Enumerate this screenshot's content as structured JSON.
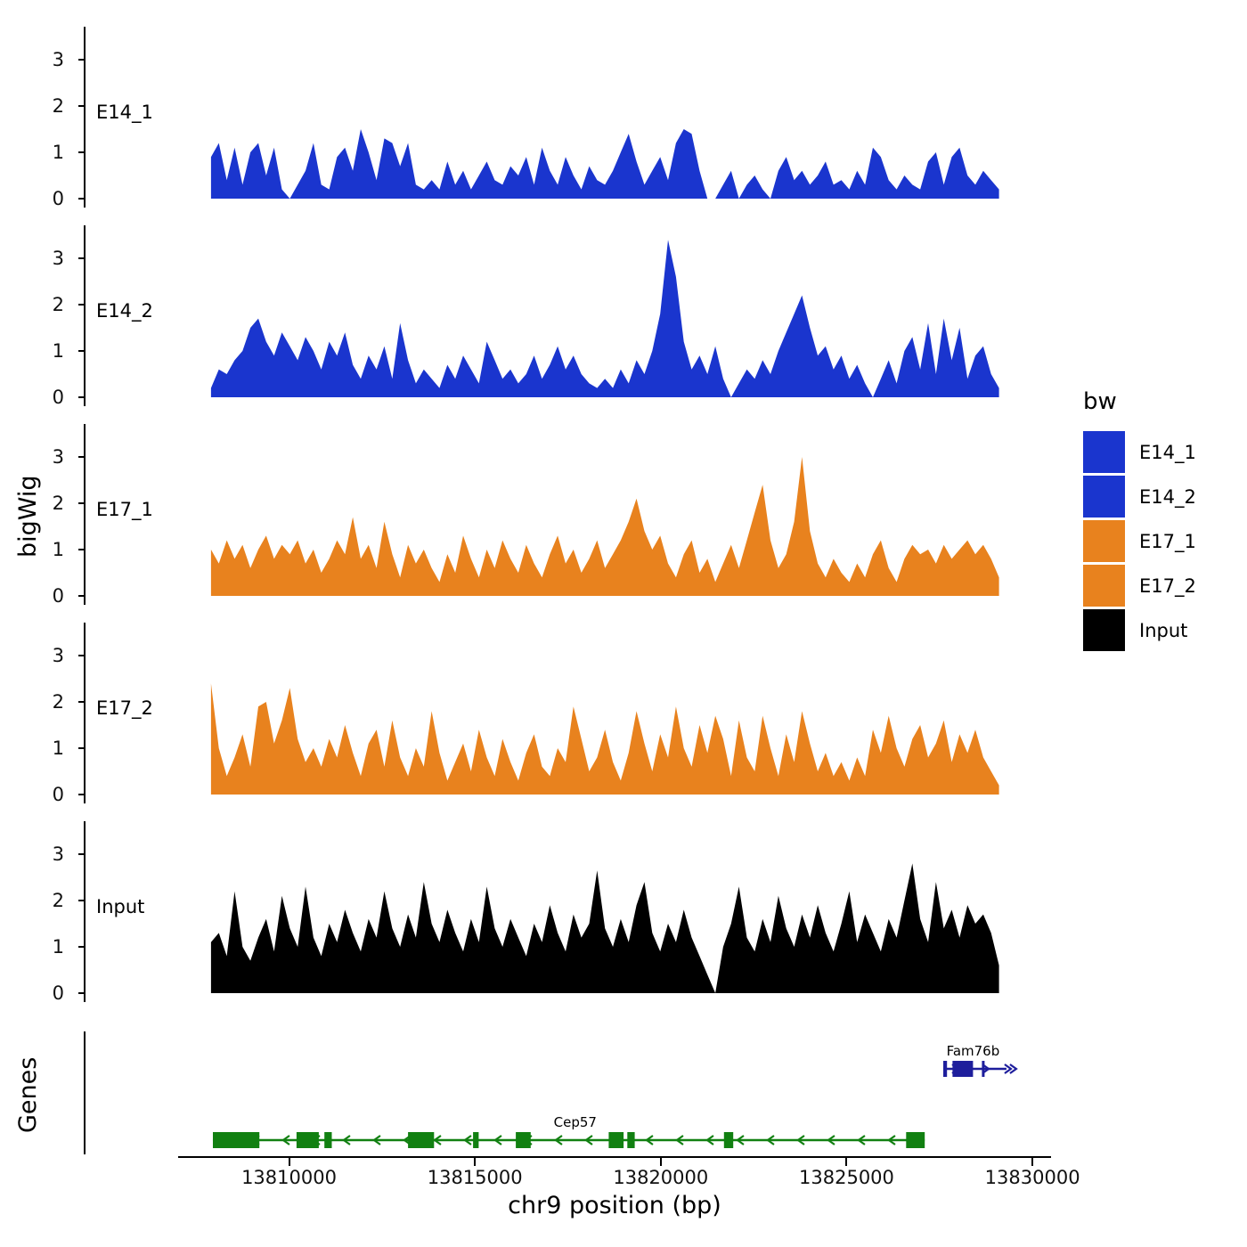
{
  "legend": {
    "title": "bw",
    "items": [
      {
        "label": "E14_1",
        "color": "#1A35CE"
      },
      {
        "label": "E14_2",
        "color": "#1A35CE"
      },
      {
        "label": "E17_1",
        "color": "#E8821E"
      },
      {
        "label": "E17_2",
        "color": "#E8821E"
      },
      {
        "label": "Input",
        "color": "#000000"
      }
    ]
  },
  "chart_data": {
    "type": "area",
    "title": "",
    "xlabel": "chr9 position (bp)",
    "ylabel": "bigWig",
    "x_range": [
      13804500,
      13830500
    ],
    "data_start": 13807900,
    "data_end": 13829100,
    "y_ticks": [
      0,
      1,
      2,
      3
    ],
    "ylim": [
      0,
      3.5
    ],
    "x_ticks": [
      {
        "bp": 13810000,
        "label": "13810000"
      },
      {
        "bp": 13815000,
        "label": "13815000"
      },
      {
        "bp": 13820000,
        "label": "13820000"
      },
      {
        "bp": 13825000,
        "label": "13825000"
      },
      {
        "bp": 13830000,
        "label": "13830000"
      }
    ],
    "series": [
      {
        "name": "E14_1",
        "color": "#1A35CE",
        "values": [
          0.9,
          1.2,
          0.4,
          1.1,
          0.3,
          1.0,
          1.2,
          0.5,
          1.1,
          0.2,
          0,
          0.3,
          0.6,
          1.2,
          0.3,
          0.2,
          0.9,
          1.1,
          0.6,
          1.5,
          1.0,
          0.4,
          1.3,
          1.2,
          0.7,
          1.2,
          0.3,
          0.2,
          0.4,
          0.2,
          0.8,
          0.3,
          0.6,
          0.2,
          0.5,
          0.8,
          0.4,
          0.3,
          0.7,
          0.5,
          0.9,
          0.3,
          1.1,
          0.6,
          0.3,
          0.9,
          0.5,
          0.2,
          0.7,
          0.4,
          0.3,
          0.6,
          1.0,
          1.4,
          0.8,
          0.3,
          0.6,
          0.9,
          0.4,
          1.2,
          1.5,
          1.4,
          0.6,
          0,
          0,
          0.3,
          0.6,
          0,
          0.3,
          0.5,
          0.2,
          0,
          0.6,
          0.9,
          0.4,
          0.6,
          0.3,
          0.5,
          0.8,
          0.3,
          0.4,
          0.2,
          0.6,
          0.3,
          1.1,
          0.9,
          0.4,
          0.2,
          0.5,
          0.3,
          0.2,
          0.8,
          1.0,
          0.3,
          0.9,
          1.1,
          0.5,
          0.3,
          0.6,
          0.4,
          0.2
        ]
      },
      {
        "name": "E14_2",
        "color": "#1A35CE",
        "values": [
          0.2,
          0.6,
          0.5,
          0.8,
          1.0,
          1.5,
          1.7,
          1.2,
          0.9,
          1.4,
          1.1,
          0.8,
          1.3,
          1.0,
          0.6,
          1.2,
          0.9,
          1.4,
          0.7,
          0.4,
          0.9,
          0.6,
          1.1,
          0.4,
          1.6,
          0.8,
          0.3,
          0.6,
          0.4,
          0.2,
          0.7,
          0.4,
          0.9,
          0.6,
          0.3,
          1.2,
          0.8,
          0.4,
          0.6,
          0.3,
          0.5,
          0.9,
          0.4,
          0.7,
          1.1,
          0.6,
          0.9,
          0.5,
          0.3,
          0.2,
          0.4,
          0.2,
          0.6,
          0.3,
          0.8,
          0.5,
          1.0,
          1.8,
          3.4,
          2.6,
          1.2,
          0.6,
          0.9,
          0.5,
          1.1,
          0.4,
          0,
          0.3,
          0.6,
          0.4,
          0.8,
          0.5,
          1.0,
          1.4,
          1.8,
          2.2,
          1.5,
          0.9,
          1.1,
          0.6,
          0.9,
          0.4,
          0.7,
          0.3,
          0,
          0.4,
          0.8,
          0.3,
          1.0,
          1.3,
          0.6,
          1.6,
          0.5,
          1.7,
          0.8,
          1.5,
          0.4,
          0.9,
          1.1,
          0.5,
          0.2
        ]
      },
      {
        "name": "E17_1",
        "color": "#E8821E",
        "values": [
          1.0,
          0.7,
          1.2,
          0.8,
          1.1,
          0.6,
          1.0,
          1.3,
          0.8,
          1.1,
          0.9,
          1.2,
          0.7,
          1.0,
          0.5,
          0.8,
          1.2,
          0.9,
          1.7,
          0.8,
          1.1,
          0.6,
          1.6,
          0.9,
          0.4,
          1.1,
          0.7,
          1.0,
          0.6,
          0.3,
          0.9,
          0.5,
          1.3,
          0.8,
          0.4,
          1.0,
          0.6,
          1.2,
          0.8,
          0.5,
          1.1,
          0.7,
          0.4,
          0.9,
          1.3,
          0.7,
          1.0,
          0.5,
          0.8,
          1.2,
          0.6,
          0.9,
          1.2,
          1.6,
          2.1,
          1.4,
          1.0,
          1.3,
          0.7,
          0.4,
          0.9,
          1.2,
          0.5,
          0.8,
          0.3,
          0.7,
          1.1,
          0.6,
          1.2,
          1.8,
          2.4,
          1.2,
          0.6,
          0.9,
          1.6,
          3.0,
          1.4,
          0.7,
          0.4,
          0.8,
          0.5,
          0.3,
          0.7,
          0.4,
          0.9,
          1.2,
          0.6,
          0.3,
          0.8,
          1.1,
          0.9,
          1.0,
          0.7,
          1.1,
          0.8,
          1.0,
          1.2,
          0.9,
          1.1,
          0.8,
          0.4
        ]
      },
      {
        "name": "E17_2",
        "color": "#E8821E",
        "values": [
          2.4,
          1.0,
          0.4,
          0.8,
          1.3,
          0.6,
          1.9,
          2.0,
          1.1,
          1.6,
          2.3,
          1.2,
          0.7,
          1.0,
          0.6,
          1.2,
          0.8,
          1.5,
          0.9,
          0.4,
          1.1,
          1.4,
          0.6,
          1.6,
          0.8,
          0.4,
          1.0,
          0.6,
          1.8,
          0.9,
          0.3,
          0.7,
          1.1,
          0.5,
          1.4,
          0.8,
          0.4,
          1.2,
          0.7,
          0.3,
          0.9,
          1.3,
          0.6,
          0.4,
          1.0,
          0.7,
          1.9,
          1.2,
          0.5,
          0.8,
          1.4,
          0.7,
          0.3,
          0.9,
          1.8,
          1.1,
          0.5,
          1.3,
          0.8,
          1.9,
          1.0,
          0.6,
          1.5,
          0.9,
          1.7,
          1.2,
          0.4,
          1.6,
          0.8,
          0.5,
          1.7,
          1.0,
          0.4,
          1.3,
          0.7,
          1.8,
          1.1,
          0.5,
          0.9,
          0.4,
          0.7,
          0.3,
          0.8,
          0.4,
          1.4,
          0.9,
          1.7,
          1.0,
          0.6,
          1.2,
          1.5,
          0.8,
          1.1,
          1.6,
          0.7,
          1.3,
          0.9,
          1.4,
          0.8,
          0.5,
          0.2
        ]
      },
      {
        "name": "Input",
        "color": "#000000",
        "values": [
          1.1,
          1.3,
          0.8,
          2.2,
          1.0,
          0.7,
          1.2,
          1.6,
          0.9,
          2.1,
          1.4,
          1.0,
          2.3,
          1.2,
          0.8,
          1.5,
          1.1,
          1.8,
          1.3,
          0.9,
          1.6,
          1.2,
          2.2,
          1.4,
          1.0,
          1.7,
          1.2,
          2.4,
          1.5,
          1.1,
          1.8,
          1.3,
          0.9,
          1.6,
          1.1,
          2.3,
          1.4,
          1.0,
          1.6,
          1.2,
          0.8,
          1.5,
          1.1,
          1.9,
          1.3,
          0.9,
          1.7,
          1.2,
          1.5,
          2.65,
          1.4,
          1.0,
          1.6,
          1.1,
          1.9,
          2.4,
          1.3,
          0.9,
          1.5,
          1.1,
          1.8,
          1.2,
          0.8,
          0.4,
          0,
          1.0,
          1.5,
          2.3,
          1.2,
          0.9,
          1.6,
          1.1,
          2.1,
          1.4,
          1.0,
          1.7,
          1.2,
          1.9,
          1.3,
          0.9,
          1.5,
          2.2,
          1.1,
          1.7,
          1.3,
          0.9,
          1.6,
          1.2,
          2.0,
          2.8,
          1.6,
          1.1,
          2.4,
          1.4,
          1.8,
          1.2,
          1.9,
          1.5,
          1.7,
          1.3,
          0.6
        ]
      }
    ],
    "genes_panel": {
      "label": "Genes",
      "genes": [
        {
          "name": "Fam76b",
          "color": "#1E1E9C",
          "strand": "+",
          "row": 0,
          "start": 13827600,
          "end": 13829300,
          "label_at": 13828400,
          "end_arrow": true,
          "exons": [
            [
              13827600,
              13827700
            ],
            [
              13827850,
              13828400
            ],
            [
              13828640,
              13828700
            ]
          ]
        },
        {
          "name": "Cep57",
          "color": "#118011",
          "strand": "-",
          "row": 1,
          "start": 13807950,
          "end": 13827100,
          "label_at": 13817700,
          "end_arrow": false,
          "exons": [
            [
              13807950,
              13809200
            ],
            [
              13810200,
              13810800
            ],
            [
              13810950,
              13811150
            ],
            [
              13813200,
              13813900
            ],
            [
              13814950,
              13815100
            ],
            [
              13816100,
              13816500
            ],
            [
              13818600,
              13819000
            ],
            [
              13819100,
              13819300
            ],
            [
              13821700,
              13821950
            ],
            [
              13826600,
              13827100
            ]
          ]
        }
      ]
    }
  }
}
